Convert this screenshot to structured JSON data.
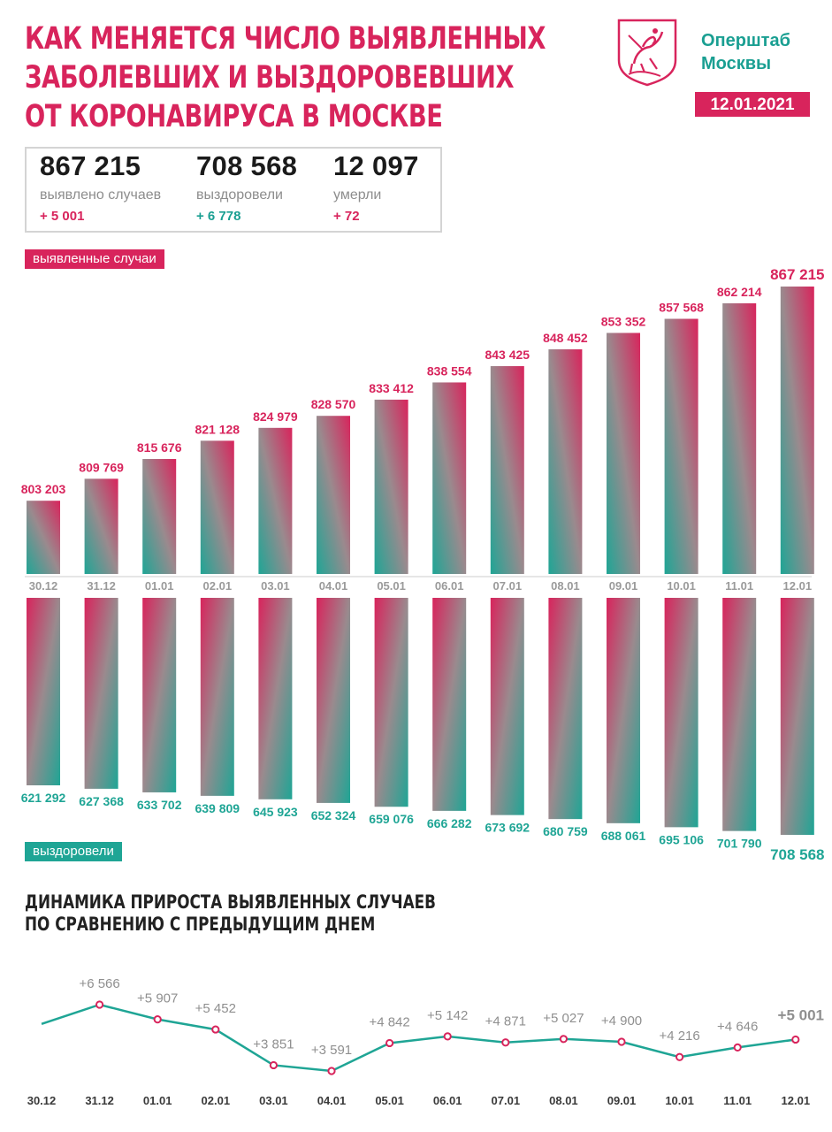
{
  "header": {
    "title_lines": [
      "КАК МЕНЯЕТСЯ ЧИСЛО ВЫЯВЛЕННЫХ",
      "ЗАБОЛЕВШИХ И ВЫЗДОРОВЕВШИХ",
      "ОТ КОРОНАВИРУСА В МОСКВЕ"
    ],
    "org_lines": [
      "Оперштаб",
      "Москвы"
    ],
    "date": "12.01.2021"
  },
  "stats": [
    {
      "value": "867 215",
      "label": "выявлено случаев",
      "delta": "+ 5 001"
    },
    {
      "value": "708 568",
      "label": "выздоровели",
      "delta": "+ 6 778"
    },
    {
      "value": "12 097",
      "label": "умерли",
      "delta": "+ 72"
    }
  ],
  "colors": {
    "pink": "#d8245c",
    "teal": "#1fa595",
    "grey": "#999999",
    "text": "#222222"
  },
  "chart_data": [
    {
      "type": "bar",
      "legend": "выявленные случаи",
      "categories": [
        "30.12",
        "31.12",
        "01.01",
        "02.01",
        "03.01",
        "04.01",
        "05.01",
        "06.01",
        "07.01",
        "08.01",
        "09.01",
        "10.01",
        "11.01",
        "12.01"
      ],
      "values": [
        803203,
        809769,
        815676,
        821128,
        824979,
        828570,
        833412,
        838554,
        843425,
        848452,
        853352,
        857568,
        862214,
        867215
      ],
      "labels": [
        "803 203",
        "809 769",
        "815 676",
        "821 128",
        "824 979",
        "828 570",
        "833 412",
        "838 554",
        "843 425",
        "848 452",
        "853 352",
        "857 568",
        "862 214",
        "867 215"
      ]
    },
    {
      "type": "bar",
      "legend": "выздоровели",
      "categories": [
        "30.12",
        "31.12",
        "01.01",
        "02.01",
        "03.01",
        "04.01",
        "05.01",
        "06.01",
        "07.01",
        "08.01",
        "09.01",
        "10.01",
        "11.01",
        "12.01"
      ],
      "values": [
        621292,
        627368,
        633702,
        639809,
        645923,
        652324,
        659076,
        666282,
        673692,
        680759,
        688061,
        695106,
        701790,
        708568
      ],
      "labels": [
        "621 292",
        "627 368",
        "633 702",
        "639 809",
        "645 923",
        "652 324",
        "659 076",
        "666 282",
        "673 692",
        "680 759",
        "688 061",
        "695 106",
        "701 790",
        "708 568"
      ]
    },
    {
      "type": "line",
      "title": "ДИНАМИКА ПРИРОСТА ВЫЯВЛЕННЫХ СЛУЧАЕВ ПО СРАВНЕНИЮ С ПРЕДЫДУЩИМ ДНЕМ",
      "title_lines": [
        "ДИНАМИКА ПРИРОСТА ВЫЯВЛЕННЫХ СЛУЧАЕВ",
        "ПО СРАВНЕНИЮ С ПРЕДЫДУЩИМ ДНЕМ"
      ],
      "categories": [
        "30.12",
        "31.12",
        "01.01",
        "02.01",
        "03.01",
        "04.01",
        "05.01",
        "06.01",
        "07.01",
        "08.01",
        "09.01",
        "10.01",
        "11.01",
        "12.01"
      ],
      "values": [
        5700,
        6566,
        5907,
        5452,
        3851,
        3591,
        4842,
        5142,
        4871,
        5027,
        4900,
        4216,
        4646,
        5001
      ],
      "labels": [
        "",
        "+6 566",
        "+5 907",
        "+5 452",
        "+3 851",
        "+3 591",
        "+4 842",
        "+5 142",
        "+4 871",
        "+5 027",
        "+4 900",
        "+4 216",
        "+4 646",
        "+5 001"
      ]
    }
  ]
}
